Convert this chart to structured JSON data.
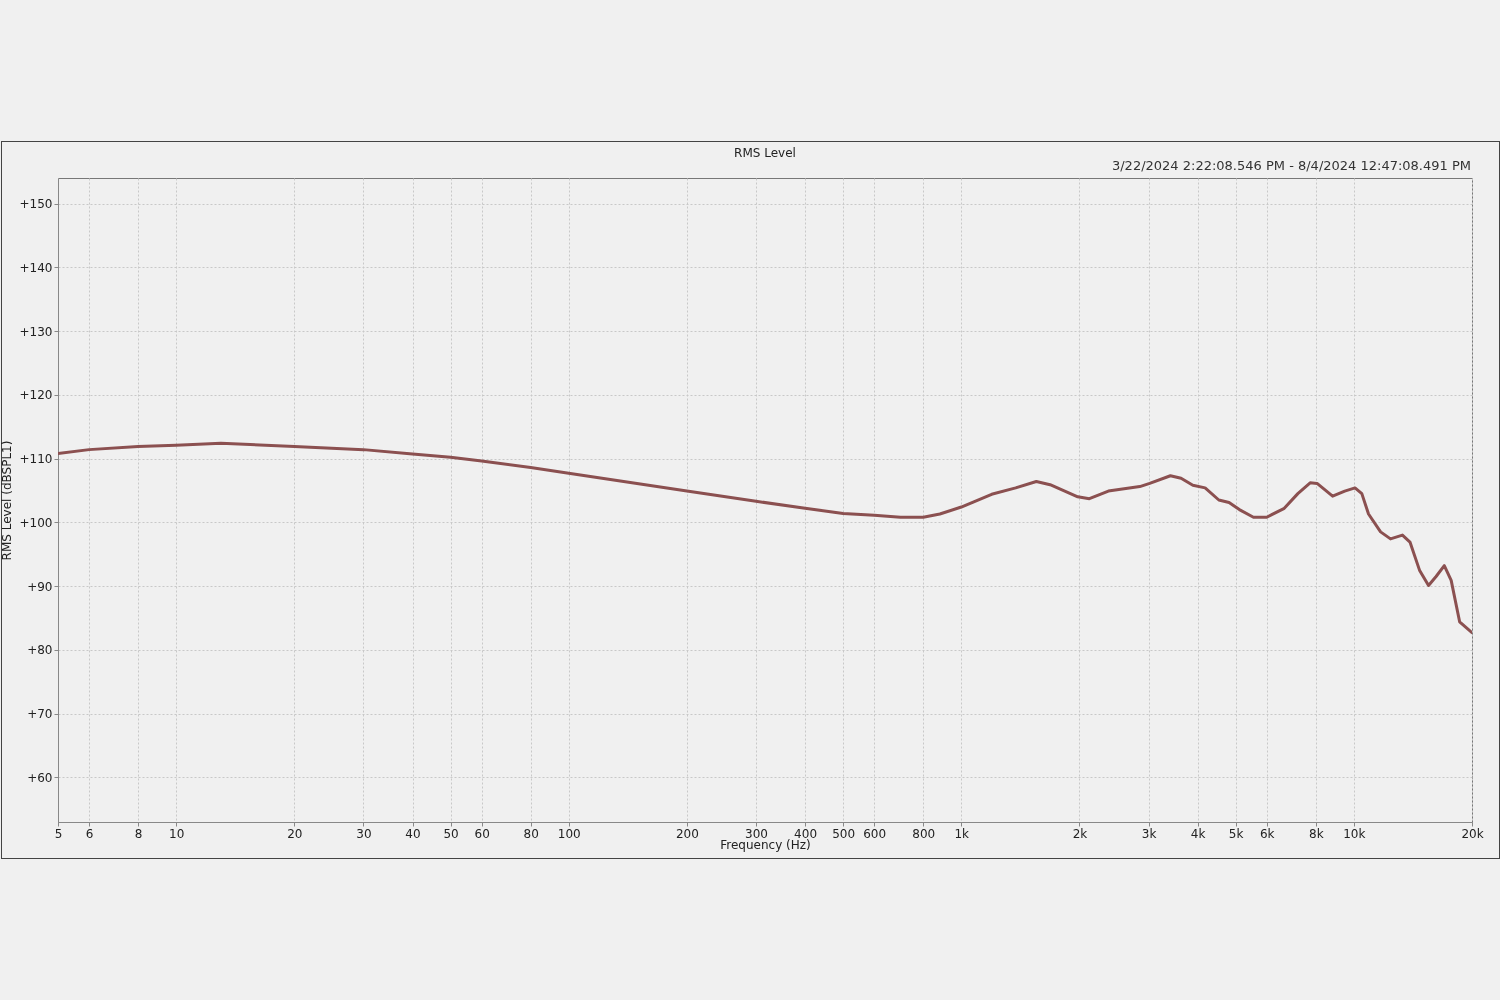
{
  "chart_data": {
    "type": "line",
    "title": "RMS Level",
    "subtitle": "3/22/2024 2:22:08.546 PM - 8/4/2024 12:47:08.491 PM",
    "xlabel": "Frequency (Hz)",
    "ylabel": "RMS Level (dBSPL1)",
    "x": [
      5,
      6,
      8,
      10,
      13,
      20,
      30,
      40,
      50,
      60,
      80,
      100,
      200,
      300,
      400,
      500,
      600,
      700,
      800,
      882,
      1000,
      1195,
      1376,
      1553,
      1684,
      1980,
      2120,
      2370,
      2850,
      3020,
      3410,
      3630,
      3890,
      4180,
      4530,
      4810,
      5110,
      5550,
      6000,
      6650,
      7200,
      7740,
      8060,
      8830,
      9480,
      10070,
      10480,
      10900,
      11700,
      12400,
      13300,
      13900,
      14700,
      15500,
      16200,
      17000,
      17700,
      18600,
      19400,
      20000
    ],
    "series": [
      {
        "color": "#8b5050",
        "values": [
          110.8,
          111.4,
          111.9,
          112.1,
          112.4,
          111.9,
          111.4,
          110.7,
          110.2,
          109.6,
          108.6,
          107.7,
          104.9,
          103.3,
          102.2,
          101.4,
          101.1,
          100.8,
          100.8,
          101.3,
          102.4,
          104.4,
          105.4,
          106.4,
          105.9,
          104.0,
          103.7,
          104.9,
          105.6,
          106.1,
          107.3,
          106.9,
          105.8,
          105.4,
          103.5,
          103.1,
          102.0,
          100.8,
          100.8,
          102.2,
          104.5,
          106.2,
          106.1,
          104.1,
          104.9,
          105.4,
          104.5,
          101.3,
          98.5,
          97.4,
          98.0,
          96.9,
          92.5,
          90.1,
          91.5,
          93.2,
          90.9,
          84.4,
          83.4,
          82.7
        ]
      }
    ],
    "xlim": [
      5,
      20000
    ],
    "ylim": [
      53,
      154
    ],
    "log": "x",
    "grid": true,
    "xticks": [
      5,
      6,
      8,
      10,
      20,
      30,
      40,
      50,
      60,
      80,
      100,
      200,
      300,
      400,
      500,
      600,
      800,
      {
        "value": 1000,
        "label": "1k"
      },
      {
        "value": 2000,
        "label": "2k"
      },
      {
        "value": 3000,
        "label": "3k"
      },
      {
        "value": 4000,
        "label": "4k"
      },
      {
        "value": 5000,
        "label": "5k"
      },
      {
        "value": 6000,
        "label": "6k"
      },
      {
        "value": 8000,
        "label": "8k"
      },
      {
        "value": 10000,
        "label": "10k"
      },
      {
        "value": 20000,
        "label": "20k"
      }
    ],
    "yticks": [
      {
        "value": 60,
        "label": "+60"
      },
      {
        "value": 70,
        "label": "+70"
      },
      {
        "value": 80,
        "label": "+80"
      },
      {
        "value": 90,
        "label": "+90"
      },
      {
        "value": 100,
        "label": "+100"
      },
      {
        "value": 110,
        "label": "+110"
      },
      {
        "value": 120,
        "label": "+120"
      },
      {
        "value": 130,
        "label": "+130"
      },
      {
        "value": 140,
        "label": "+140"
      },
      {
        "value": 150,
        "label": "+150"
      }
    ]
  }
}
